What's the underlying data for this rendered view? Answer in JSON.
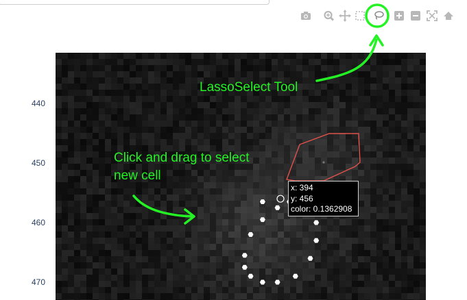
{
  "search": {
    "value": "",
    "placeholder": ""
  },
  "modebar": {
    "buttons": [
      {
        "icon": "camera-icon",
        "title": "Download plot as a png"
      },
      {
        "icon": "zoom-icon",
        "title": "Zoom"
      },
      {
        "icon": "pan-icon",
        "title": "Pan"
      },
      {
        "icon": "box-select-icon",
        "title": "Box Select"
      },
      {
        "icon": "lasso-icon",
        "title": "Lasso Select",
        "active": true
      },
      {
        "icon": "zoom-in-icon",
        "title": "Zoom in"
      },
      {
        "icon": "zoom-out-icon",
        "title": "Zoom out"
      },
      {
        "icon": "autoscale-icon",
        "title": "Autoscale"
      },
      {
        "icon": "reset-axes-icon",
        "title": "Reset axes"
      }
    ]
  },
  "colors": {
    "annotation": "#24f224",
    "tick_text": "#2a3f5f",
    "lasso_outline": "#e0524c",
    "selection_points": "#ffffff",
    "modebar_icon": "#b8b8b8"
  },
  "chart_data": {
    "type": "heatmap",
    "colorscale": "greys",
    "y_axis": {
      "ticks": [
        "440",
        "450",
        "460",
        "470"
      ],
      "tick_values": [
        440,
        450,
        460,
        470
      ],
      "range": [
        431.5,
        473
      ]
    },
    "selected_points": [
      {
        "x": 391,
        "y": 456.5
      },
      {
        "x": 393.5,
        "y": 457.5
      },
      {
        "x": 395.5,
        "y": 456.5
      },
      {
        "x": 397.5,
        "y": 456.5
      },
      {
        "x": 398.5,
        "y": 458.5
      },
      {
        "x": 400,
        "y": 460
      },
      {
        "x": 400,
        "y": 463
      },
      {
        "x": 399,
        "y": 466
      },
      {
        "x": 396.5,
        "y": 469
      },
      {
        "x": 393.5,
        "y": 470
      },
      {
        "x": 391,
        "y": 470
      },
      {
        "x": 389,
        "y": 469
      },
      {
        "x": 388,
        "y": 467.5
      },
      {
        "x": 388,
        "y": 465.5
      },
      {
        "x": 389,
        "y": 462
      },
      {
        "x": 391,
        "y": 459.5
      }
    ],
    "hover": {
      "x": "394",
      "y": "456",
      "color": "0.1362908"
    }
  },
  "hover_text": {
    "x_line": "x: 394",
    "y_line": "y: 456",
    "color_line": "color: 0.1362908"
  },
  "annotations": {
    "lasso_label": "LassoSelect Tool",
    "drag_line1": "Click and drag to select",
    "drag_line2": "new cell"
  }
}
